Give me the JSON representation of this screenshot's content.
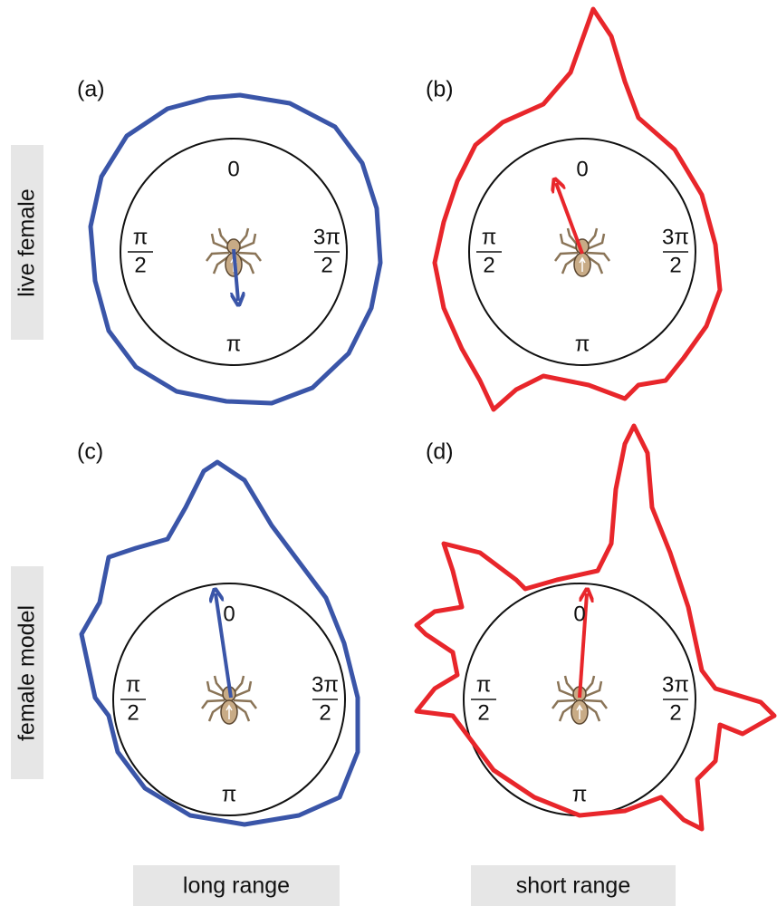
{
  "rows": [
    "live female",
    "female model"
  ],
  "columns": [
    "long range",
    "short range"
  ],
  "panels": [
    {
      "label": "(a)",
      "top": "0",
      "left": {
        "numerator": "π",
        "denominator": "2"
      },
      "right": {
        "numerator": "3π",
        "denominator": "2"
      },
      "bottom": "π"
    },
    {
      "label": "(b)",
      "top": "0",
      "left": {
        "numerator": "π",
        "denominator": "2"
      },
      "right": {
        "numerator": "3π",
        "denominator": "2"
      },
      "bottom": "π"
    },
    {
      "label": "(c)",
      "top": "0",
      "left": {
        "numerator": "π",
        "denominator": "2"
      },
      "right": {
        "numerator": "3π",
        "denominator": "2"
      },
      "bottom": "π"
    },
    {
      "label": "(d)",
      "top": "0",
      "left": {
        "numerator": "π",
        "denominator": "2"
      },
      "right": {
        "numerator": "3π",
        "denominator": "2"
      },
      "bottom": "π"
    }
  ]
}
